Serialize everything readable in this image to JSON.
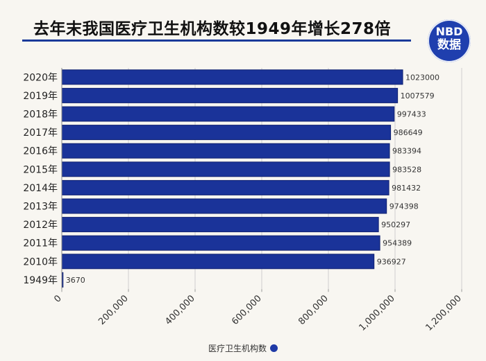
{
  "title": "去年末我国医疗卫生机构数较1949年增长278倍",
  "logo": {
    "top": "NBD",
    "bottom": "数据"
  },
  "colors": {
    "bar": "#1a3399",
    "bar_edge": "#0f2070",
    "accent": "#1f3fae"
  },
  "chart_data": {
    "type": "bar",
    "orientation": "horizontal",
    "categories": [
      "2020年",
      "2019年",
      "2018年",
      "2017年",
      "2016年",
      "2015年",
      "2014年",
      "2013年",
      "2012年",
      "2011年",
      "2010年",
      "1949年"
    ],
    "series": [
      {
        "name": "医疗卫生机构数",
        "values": [
          1023000,
          1007579,
          997433,
          986649,
          983394,
          983528,
          981432,
          974398,
          950297,
          954389,
          936927,
          3670
        ]
      }
    ],
    "value_labels": [
      "1023000",
      "1007579",
      "997433",
      "986649",
      "983394",
      "983528",
      "981432",
      "974398",
      "950297",
      "954389",
      "936927",
      "3670"
    ],
    "x_ticks": [
      0,
      200000,
      400000,
      600000,
      800000,
      1000000,
      1200000
    ],
    "x_tick_labels": [
      "0",
      "200,000",
      "400,000",
      "600,000",
      "800,000",
      "1,000,000",
      "1,200,000"
    ],
    "xlim": [
      0,
      1200000
    ],
    "grid": true,
    "legend": "bottom-center",
    "xlabel": "",
    "ylabel": ""
  }
}
